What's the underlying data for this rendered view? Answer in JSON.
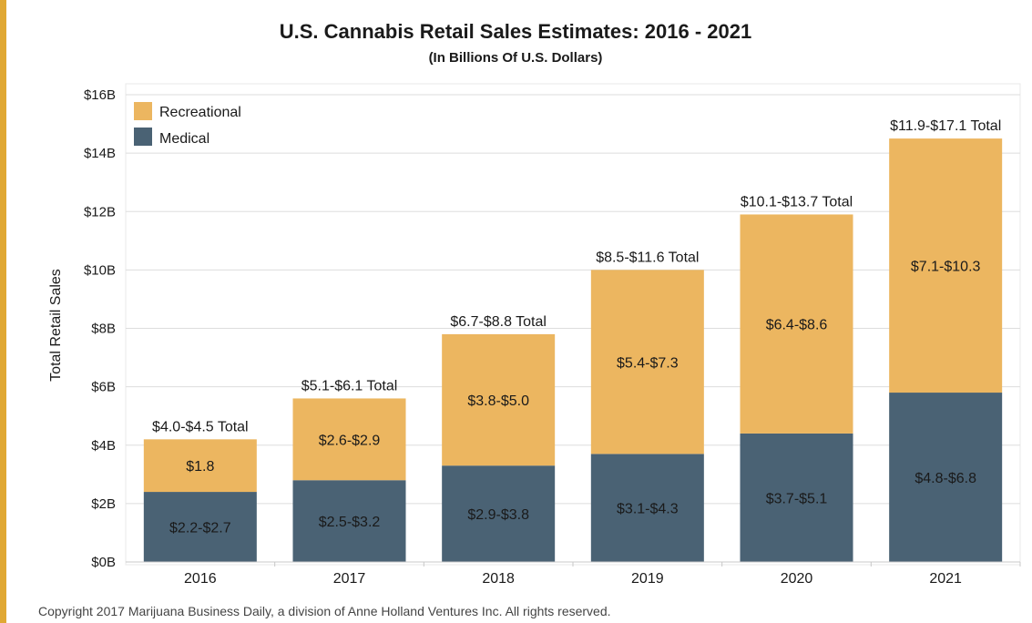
{
  "colors": {
    "recreational": "#ecb660",
    "medical": "#4a6274",
    "stripe": "#e0a834",
    "grid": "#dddddd"
  },
  "footer": "Copyright 2017 Marijuana Business Daily, a division of Anne Holland Ventures Inc. All rights reserved.",
  "chart_data": {
    "type": "bar",
    "stacked": true,
    "title": "U.S. Cannabis Retail Sales Estimates: 2016 - 2021",
    "subtitle": "(In Billions Of U.S. Dollars)",
    "xlabel": "",
    "ylabel": "Total Retail Sales",
    "ylim": [
      0,
      16
    ],
    "yticks": [
      0,
      2,
      4,
      6,
      8,
      10,
      12,
      14,
      16
    ],
    "ytick_labels": [
      "$0B",
      "$2B",
      "$4B",
      "$6B",
      "$8B",
      "$10B",
      "$12B",
      "$14B",
      "$16B"
    ],
    "grid": true,
    "legend_position": "top-left",
    "categories": [
      "2016",
      "2017",
      "2018",
      "2019",
      "2020",
      "2021"
    ],
    "series": [
      {
        "name": "Medical",
        "color": "#4a6274",
        "values": [
          2.4,
          2.8,
          3.3,
          3.7,
          4.4,
          5.8
        ],
        "labels": [
          "$2.2-$2.7",
          "$2.5-$3.2",
          "$2.9-$3.8",
          "$3.1-$4.3",
          "$3.7-$5.1",
          "$4.8-$6.8"
        ]
      },
      {
        "name": "Recreational",
        "color": "#ecb660",
        "values": [
          1.8,
          2.8,
          4.5,
          6.3,
          7.5,
          8.7
        ],
        "labels": [
          "$1.8",
          "$2.6-$2.9",
          "$3.8-$5.0",
          "$5.4-$7.3",
          "$6.4-$8.6",
          "$7.1-$10.3"
        ]
      }
    ],
    "totals": [
      "$4.0-$4.5 Total",
      "$5.1-$6.1 Total",
      "$6.7-$8.8 Total",
      "$8.5-$11.6 Total",
      "$10.1-$13.7 Total",
      "$11.9-$17.1 Total"
    ],
    "legend": [
      {
        "name": "Recreational",
        "color": "#ecb660"
      },
      {
        "name": "Medical",
        "color": "#4a6274"
      }
    ]
  }
}
